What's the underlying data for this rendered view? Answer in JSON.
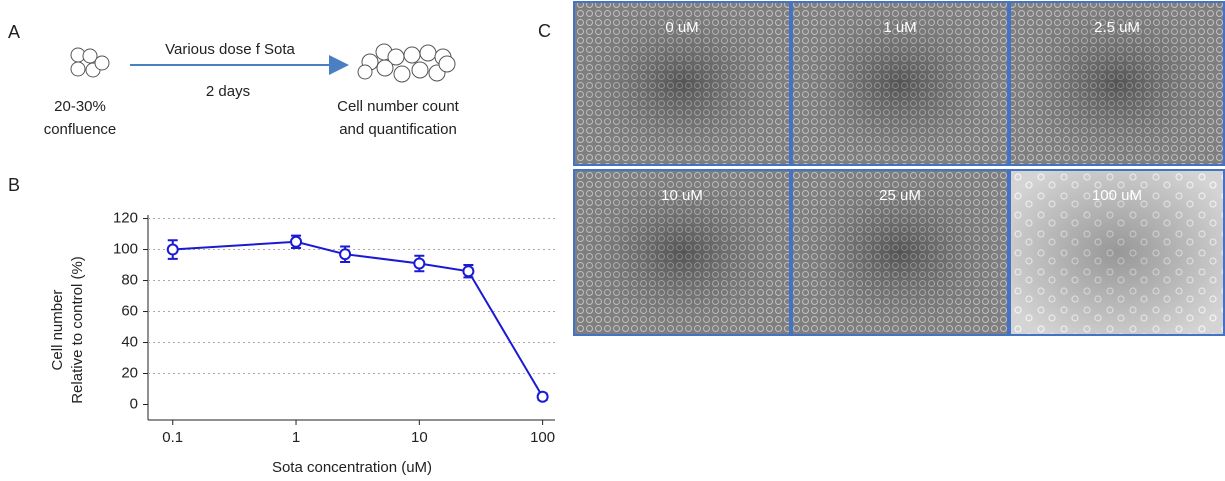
{
  "panel_a": {
    "label": "A",
    "arrow_label": "Various dose f Sota",
    "duration": "2 days",
    "start_label": [
      "20-30%",
      "confluence"
    ],
    "end_label": [
      "Cell number  count",
      "and quantification"
    ]
  },
  "chart_data": {
    "type": "line",
    "panel_label": "B",
    "x": [
      0.1,
      1,
      2.5,
      10,
      25,
      100
    ],
    "values": [
      100,
      105,
      97,
      91,
      86,
      5
    ],
    "errors": [
      6,
      4,
      5,
      5,
      4,
      2
    ],
    "color": "#1a1ad6",
    "xlabel": "Sota concentration  (uM)",
    "ylabel": [
      "Cell number",
      "Relative to control  (%)"
    ],
    "xscale": "log",
    "xlim": [
      0.063,
      126
    ],
    "xticks": [
      0.1,
      1,
      10,
      100
    ],
    "ylim": [
      -10,
      121
    ],
    "yticks": [
      0,
      20,
      40,
      60,
      80,
      100,
      120
    ],
    "grid": true
  },
  "panel_c": {
    "label": "C",
    "images": [
      {
        "label": "0 uM"
      },
      {
        "label": "1 uM"
      },
      {
        "label": "2.5 uM"
      },
      {
        "label": "10 uM"
      },
      {
        "label": "25 uM"
      },
      {
        "label": "100 uM"
      }
    ]
  }
}
